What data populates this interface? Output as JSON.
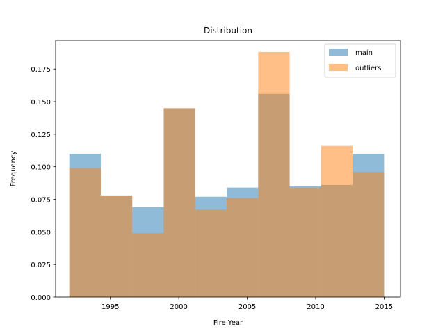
{
  "chart_data": {
    "type": "bar",
    "title": "Distribution",
    "xlabel": "Fire Year",
    "ylabel": "Frequency",
    "xlim": [
      1991,
      2016.2
    ],
    "ylim": [
      0,
      0.197
    ],
    "bin_edges": [
      1992,
      1994.3,
      1996.6,
      1998.9,
      2001.2,
      2003.5,
      2005.8,
      2008.1,
      2010.4,
      2012.7,
      2015
    ],
    "series": [
      {
        "name": "main",
        "color": "#1f77b4",
        "values": [
          0.11,
          0.078,
          0.069,
          0.145,
          0.077,
          0.084,
          0.156,
          0.085,
          0.086,
          0.11
        ]
      },
      {
        "name": "outliers",
        "color": "#ff7f0e",
        "values": [
          0.099,
          0.078,
          0.049,
          0.145,
          0.067,
          0.076,
          0.188,
          0.084,
          0.116,
          0.096
        ]
      }
    ],
    "xticks": [
      1995,
      2000,
      2005,
      2010,
      2015
    ],
    "xtick_labels": [
      "1995",
      "2000",
      "2005",
      "2010",
      "2015"
    ],
    "yticks": [
      0.0,
      0.025,
      0.05,
      0.075,
      0.1,
      0.125,
      0.15,
      0.175
    ],
    "ytick_labels": [
      "0.000",
      "0.025",
      "0.050",
      "0.075",
      "0.100",
      "0.125",
      "0.150",
      "0.175"
    ],
    "bar_opacity": 0.5,
    "grid": false,
    "legend_position": "top-right"
  }
}
